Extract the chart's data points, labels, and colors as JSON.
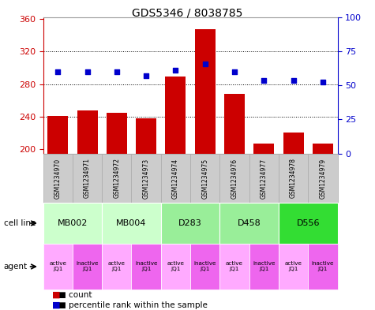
{
  "title": "GDS5346 / 8038785",
  "samples": [
    "GSM1234970",
    "GSM1234971",
    "GSM1234972",
    "GSM1234973",
    "GSM1234974",
    "GSM1234975",
    "GSM1234976",
    "GSM1234977",
    "GSM1234978",
    "GSM1234979"
  ],
  "bar_values": [
    241,
    248,
    245,
    238,
    289,
    347,
    268,
    207,
    221,
    207
  ],
  "dot_values": [
    295,
    295,
    295,
    290,
    297,
    305,
    295,
    284,
    284,
    282
  ],
  "ylim_left": [
    195,
    362
  ],
  "ylim_right": [
    0,
    100
  ],
  "yticks_left": [
    200,
    240,
    280,
    320,
    360
  ],
  "yticks_right": [
    0,
    25,
    50,
    75,
    100
  ],
  "bar_color": "#cc0000",
  "dot_color": "#0000cc",
  "cell_lines": [
    {
      "label": "MB002",
      "span": [
        0,
        2
      ],
      "color": "#ccffcc"
    },
    {
      "label": "MB004",
      "span": [
        2,
        4
      ],
      "color": "#ccffcc"
    },
    {
      "label": "D283",
      "span": [
        4,
        6
      ],
      "color": "#99ee99"
    },
    {
      "label": "D458",
      "span": [
        6,
        8
      ],
      "color": "#99ee99"
    },
    {
      "label": "D556",
      "span": [
        8,
        10
      ],
      "color": "#33dd33"
    }
  ],
  "agents": [
    {
      "label": "active\nJQ1",
      "color": "#ffaaff"
    },
    {
      "label": "inactive\nJQ1",
      "color": "#ee66ee"
    },
    {
      "label": "active\nJQ1",
      "color": "#ffaaff"
    },
    {
      "label": "inactive\nJQ1",
      "color": "#ee66ee"
    },
    {
      "label": "active\nJQ1",
      "color": "#ffaaff"
    },
    {
      "label": "inactive\nJQ1",
      "color": "#ee66ee"
    },
    {
      "label": "active\nJQ1",
      "color": "#ffaaff"
    },
    {
      "label": "inactive\nJQ1",
      "color": "#ee66ee"
    },
    {
      "label": "active\nJQ1",
      "color": "#ffaaff"
    },
    {
      "label": "inactive\nJQ1",
      "color": "#ee66ee"
    }
  ],
  "left_axis_color": "#cc0000",
  "right_axis_color": "#0000cc",
  "sample_box_color": "#cccccc",
  "sample_box_edge": "#aaaaaa"
}
